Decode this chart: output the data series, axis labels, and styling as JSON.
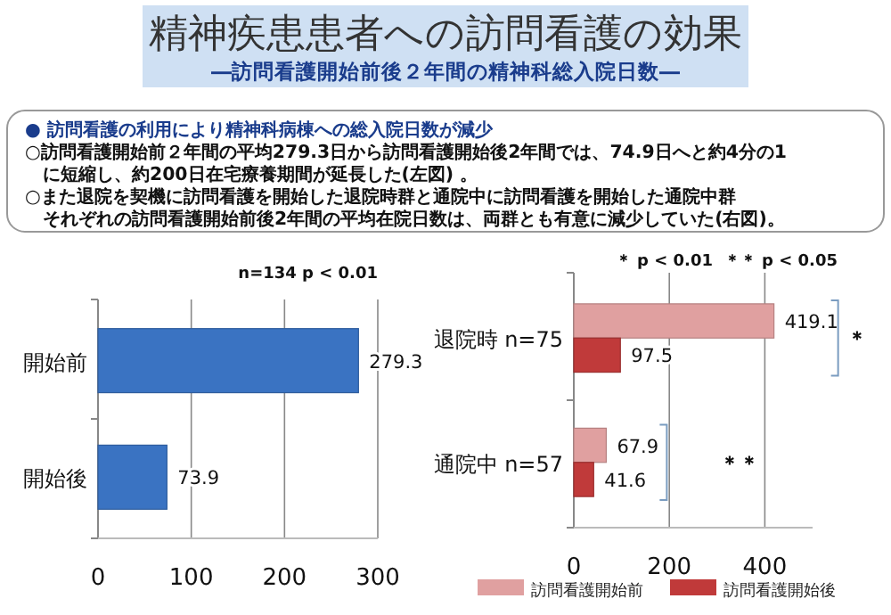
{
  "chart_data": [
    {
      "type": "other",
      "title": "精神疾患患者への訪問看護の効果",
      "subtitle": "―訪問看護開始前後２年間の精神科総入院日数―",
      "annotations": [
        "●  訪問看護の利用により精神科病棟への総入院日数が減少",
        "○訪問看護開始前２年間の平均279.3日から訪問看護開始後2年間では、74.9日へと約4分の1",
        "　に短縮し、約200日在宅療養期間が延長した(左図) 。",
        "○また退院を契機に訪問看護を開始した退院時群と通院中に訪問看護を開始した通院中群",
        "　それぞれの訪問看護開始前後2年間の平均在院日数は、両群とも有意に減少していた(右図)。"
      ]
    },
    {
      "type": "bar",
      "orientation": "horizontal",
      "categories": [
        "開始前",
        "開始後"
      ],
      "series": [
        {
          "color": "#3a73c2",
          "values": [
            279.3,
            73.9
          ]
        }
      ],
      "xlim": [
        0,
        300
      ],
      "xticks": [
        0,
        100,
        200,
        300
      ],
      "grid": "x",
      "data_labels": true,
      "legend": false,
      "annotations": [
        "n=134   p < 0.01"
      ]
    },
    {
      "type": "bar",
      "orientation": "horizontal",
      "categories": [
        "退院時 n=75",
        "通院中 n=57"
      ],
      "series": [
        {
          "name": "訪問看護開始前",
          "color": "#e0a0a0",
          "values": [
            419.1,
            67.9
          ]
        },
        {
          "name": "訪問看護開始後",
          "color": "#c03a3a",
          "values": [
            97.5,
            41.6
          ]
        }
      ],
      "xlim": [
        0,
        500
      ],
      "xticks": [
        0,
        200,
        400
      ],
      "grid": "x",
      "data_labels": true,
      "legend": "bottom",
      "annotations": [
        "＊  p < 0.01",
        "＊＊  p < 0.05",
        "＊",
        "＊＊"
      ]
    }
  ]
}
